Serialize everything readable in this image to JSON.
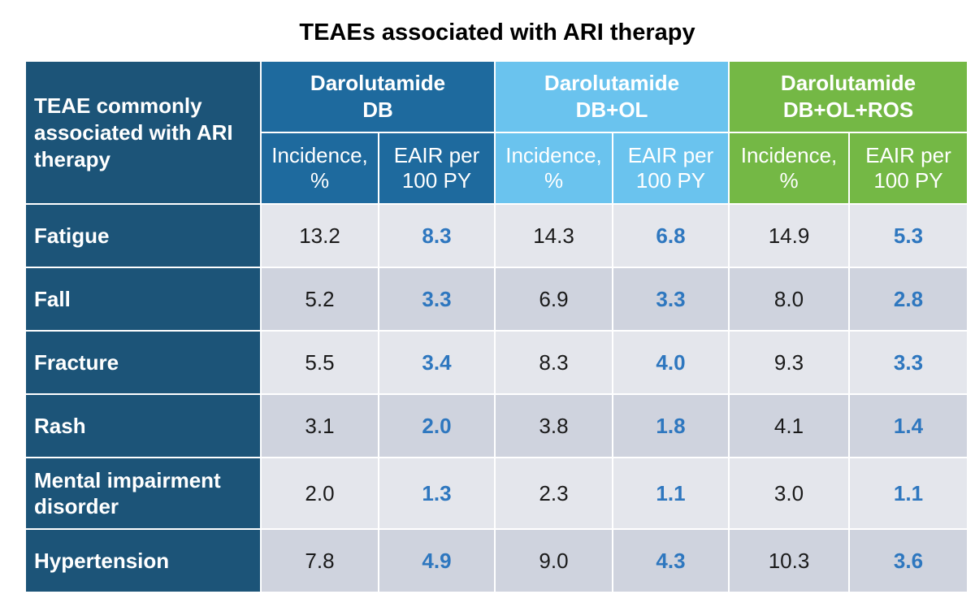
{
  "title": "TEAEs associated with ARI therapy",
  "corner_header": "TEAE commonly associated with ARI therapy",
  "groups": [
    {
      "name_line1": "Darolutamide",
      "name_line2": "DB",
      "color": "#1e6a9e"
    },
    {
      "name_line1": "Darolutamide",
      "name_line2": "DB+OL",
      "color": "#6ac3ee"
    },
    {
      "name_line1": "Darolutamide",
      "name_line2": "DB+OL+ROS",
      "color": "#74b845"
    }
  ],
  "subheaders": {
    "incidence_line1": "Incidence,",
    "incidence_line2": "%",
    "eair_line1": "EAIR per",
    "eair_line2": "100 PY"
  },
  "rows": [
    {
      "label": "Fatigue",
      "values": [
        "13.2",
        "8.3",
        "14.3",
        "6.8",
        "14.9",
        "5.3"
      ]
    },
    {
      "label": "Fall",
      "values": [
        "5.2",
        "3.3",
        "6.9",
        "3.3",
        "8.0",
        "2.8"
      ]
    },
    {
      "label": "Fracture",
      "values": [
        "5.5",
        "3.4",
        "8.3",
        "4.0",
        "9.3",
        "3.3"
      ]
    },
    {
      "label": "Rash",
      "values": [
        "3.1",
        "2.0",
        "3.8",
        "1.8",
        "4.1",
        "1.4"
      ]
    },
    {
      "label": "Mental impairment disorder",
      "values": [
        "2.0",
        "1.3",
        "2.3",
        "1.1",
        "3.0",
        "1.1"
      ]
    },
    {
      "label": "Hypertension",
      "values": [
        "7.8",
        "4.9",
        "9.0",
        "4.3",
        "10.3",
        "3.6"
      ]
    }
  ],
  "colors": {
    "row_header_bg": "#1c5478",
    "row_light": "#e4e6ec",
    "row_dark": "#cfd3de",
    "eair_text": "#2e77bf"
  }
}
